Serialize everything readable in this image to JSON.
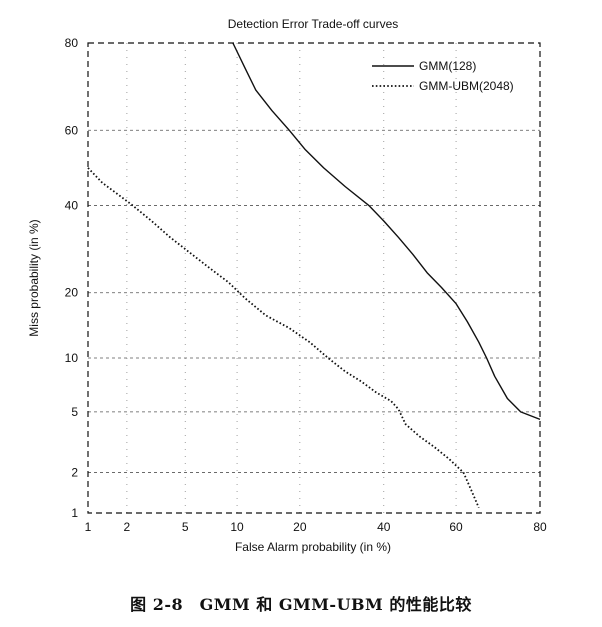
{
  "caption": "图 2-8　GMM 和 GMM-UBM 的性能比较",
  "chart_data": {
    "type": "line",
    "title": "Detection Error Trade-off curves",
    "xlabel": "False Alarm probability (in %)",
    "ylabel": "Miss probability (in %)",
    "x_scale": "probit",
    "y_scale": "probit",
    "xlim": [
      1,
      80
    ],
    "ylim": [
      1,
      80
    ],
    "x_ticks": [
      1,
      2,
      5,
      10,
      20,
      40,
      60,
      80
    ],
    "y_ticks": [
      1,
      2,
      5,
      10,
      20,
      40,
      60,
      80
    ],
    "grid": true,
    "legend_position": "top-right",
    "series": [
      {
        "name": "GMM(128)",
        "style": "solid",
        "color": "#111111",
        "points": [
          [
            9.5,
            80
          ],
          [
            11,
            75
          ],
          [
            12.5,
            70
          ],
          [
            15,
            65
          ],
          [
            18,
            60
          ],
          [
            21,
            55
          ],
          [
            25,
            50
          ],
          [
            30,
            45
          ],
          [
            36,
            40
          ],
          [
            40,
            36
          ],
          [
            44,
            32
          ],
          [
            48,
            28
          ],
          [
            52,
            24
          ],
          [
            56,
            21
          ],
          [
            60,
            18
          ],
          [
            63,
            15
          ],
          [
            66,
            12
          ],
          [
            68,
            10
          ],
          [
            70,
            8
          ],
          [
            73,
            6
          ],
          [
            76,
            5
          ],
          [
            80,
            4.5
          ]
        ]
      },
      {
        "name": "GMM-UBM(2048)",
        "style": "dotted",
        "color": "#111111",
        "points": [
          [
            1,
            50
          ],
          [
            1.3,
            46
          ],
          [
            1.7,
            43
          ],
          [
            2.2,
            40
          ],
          [
            3,
            36
          ],
          [
            4,
            32
          ],
          [
            5.5,
            28
          ],
          [
            7,
            25
          ],
          [
            9,
            22
          ],
          [
            11,
            19
          ],
          [
            14,
            16
          ],
          [
            18,
            14
          ],
          [
            22,
            12
          ],
          [
            26,
            10
          ],
          [
            30,
            8.5
          ],
          [
            34,
            7.5
          ],
          [
            38,
            6.5
          ],
          [
            42,
            5.8
          ],
          [
            44,
            5.2
          ],
          [
            46,
            4.2
          ],
          [
            50,
            3.5
          ],
          [
            54,
            3
          ],
          [
            58,
            2.5
          ],
          [
            62,
            2
          ],
          [
            64,
            1.5
          ],
          [
            66,
            1.1
          ]
        ]
      }
    ]
  }
}
